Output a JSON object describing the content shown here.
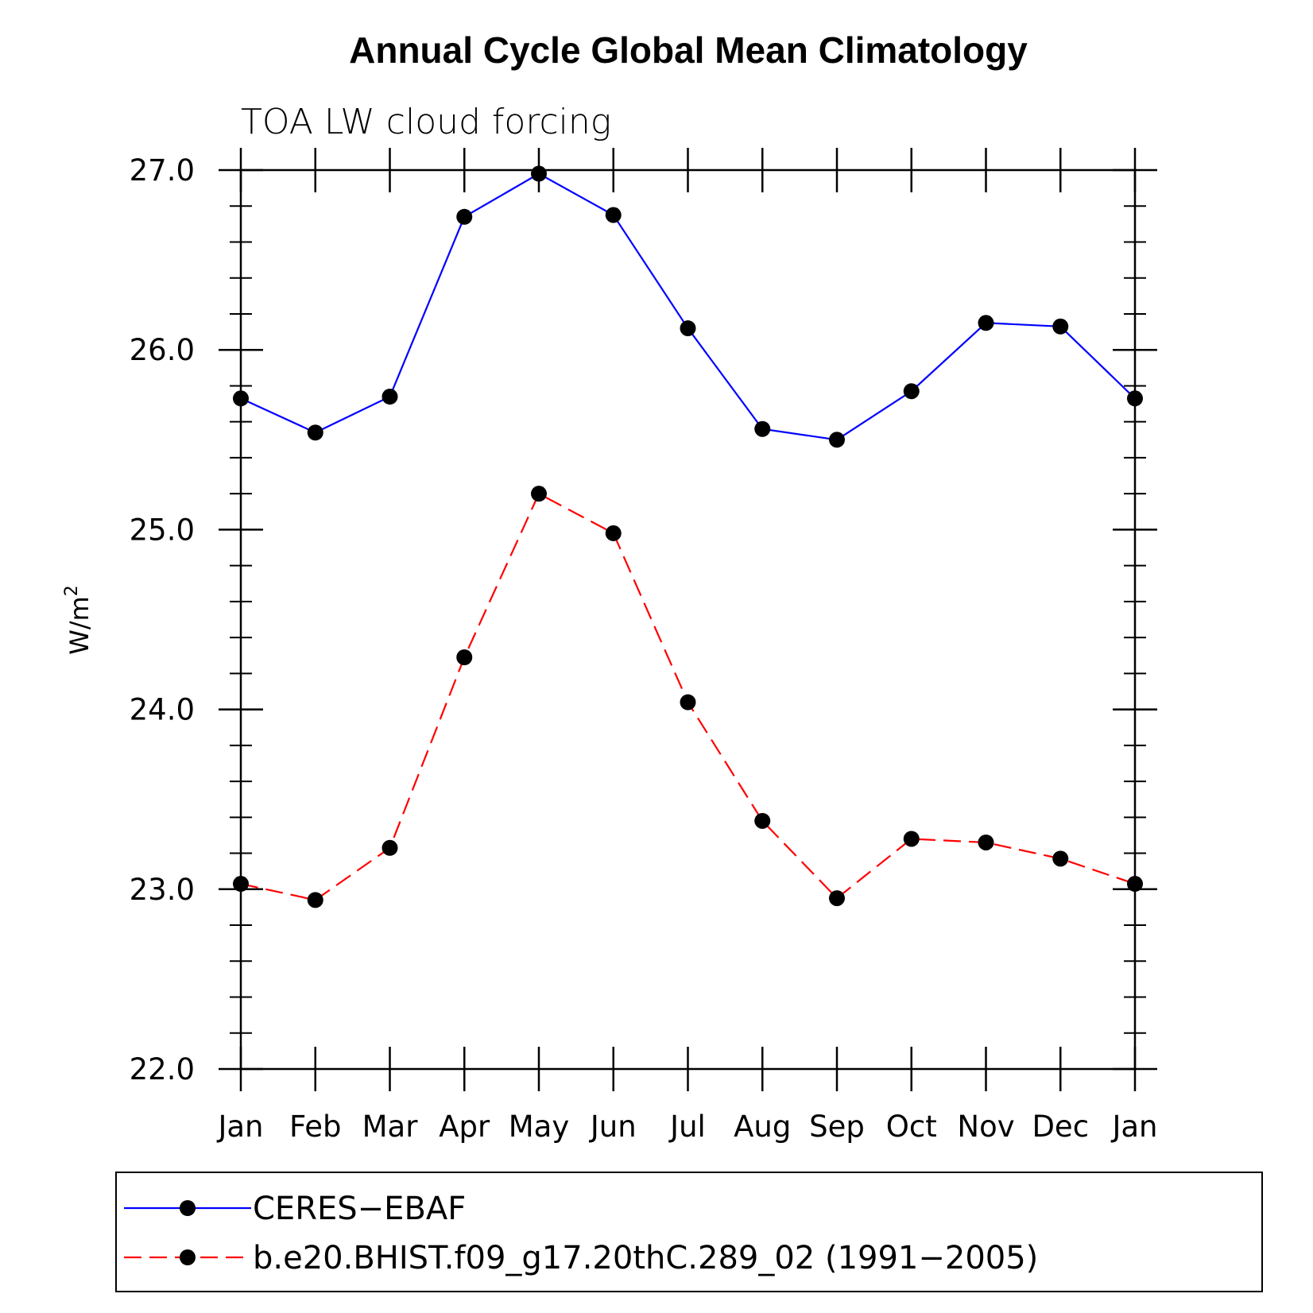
{
  "chart_data": {
    "type": "line",
    "title": "Annual Cycle Global Mean Climatology",
    "subtitle": "TOA LW cloud forcing",
    "xlabel": "",
    "ylabel": "W/m",
    "ylabel_superscript": "2",
    "categories": [
      "Jan",
      "Feb",
      "Mar",
      "Apr",
      "May",
      "Jun",
      "Jul",
      "Aug",
      "Sep",
      "Oct",
      "Nov",
      "Dec",
      "Jan"
    ],
    "ylim": [
      22.0,
      27.0
    ],
    "yticks": [
      "22.0",
      "23.0",
      "24.0",
      "25.0",
      "26.0",
      "27.0"
    ],
    "grid": false,
    "legend_position": "bottom",
    "series": [
      {
        "name": "CERES−EBAF",
        "color": "#0000ff",
        "style": "solid",
        "values": [
          25.73,
          25.54,
          25.74,
          26.74,
          26.98,
          26.75,
          26.12,
          25.56,
          25.5,
          25.77,
          26.15,
          26.13,
          25.73
        ]
      },
      {
        "name": "b.e20.BHIST.f09_g17.20thC.289_02 (1991−2005)",
        "color": "#ff0000",
        "style": "dashed",
        "values": [
          23.03,
          22.94,
          23.23,
          24.29,
          25.2,
          24.98,
          24.04,
          23.38,
          22.95,
          23.28,
          23.26,
          23.17,
          23.03
        ]
      }
    ]
  }
}
